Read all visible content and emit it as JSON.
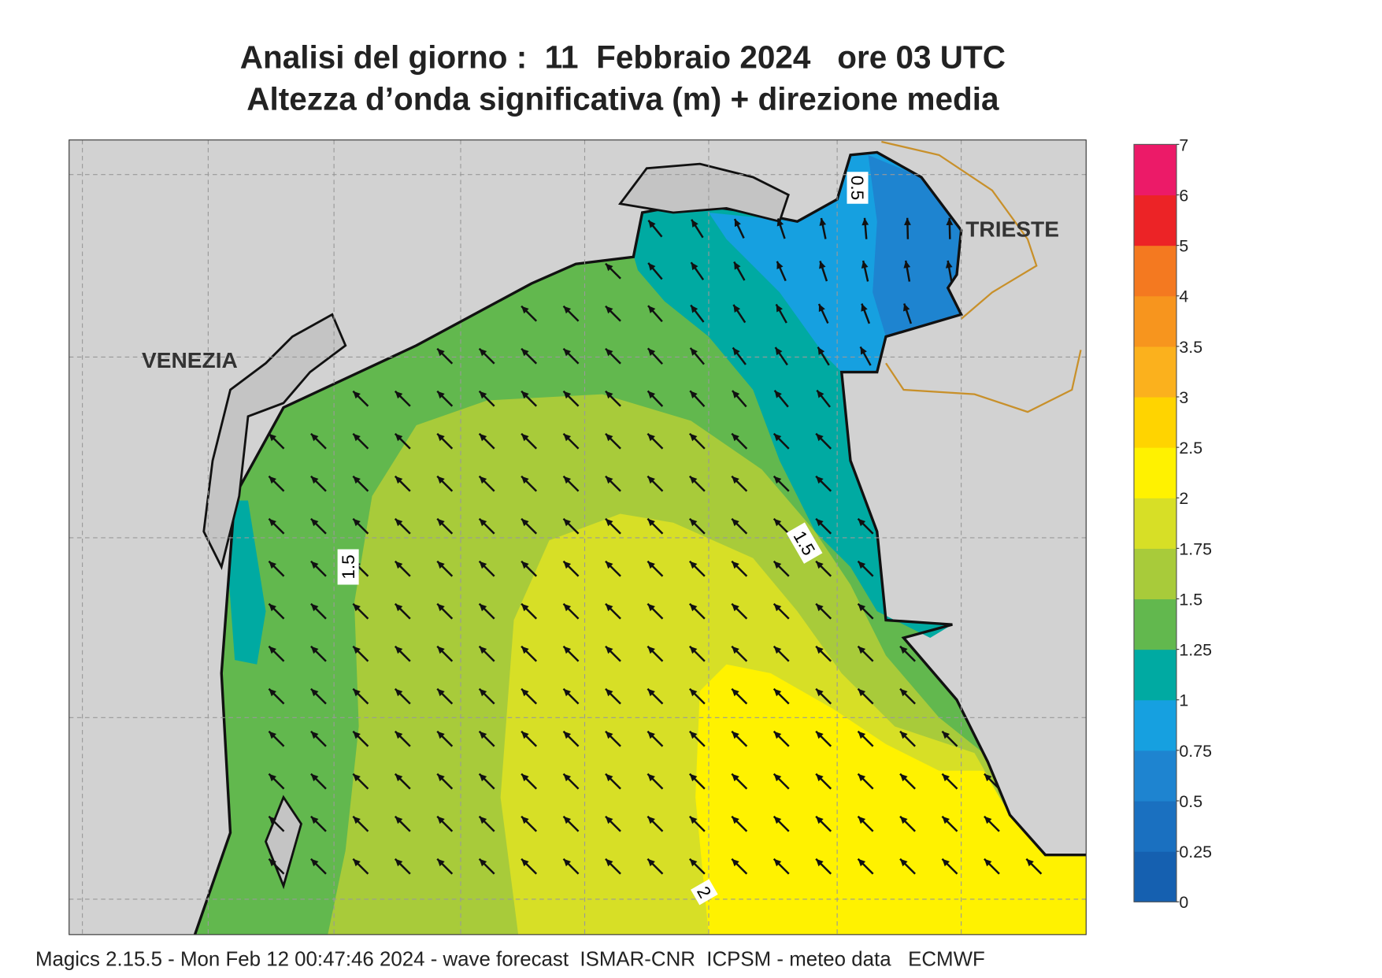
{
  "header": {
    "title": "Analisi del giorno :  11  Febbraio 2024   ore 03 UTC",
    "subtitle": "Altezza d’onda significativa (m) + direzione media"
  },
  "map": {
    "labels": [
      "VENEZIA",
      "TRIESTE"
    ],
    "contour_labels": [
      0.5,
      1.5,
      1.5,
      2
    ]
  },
  "colorbar": {
    "ticks": [
      0,
      0.25,
      0.5,
      0.75,
      1,
      1.25,
      1.5,
      1.75,
      2,
      2.5,
      3,
      3.5,
      4,
      5,
      6,
      7
    ],
    "colors": [
      "#1560b0",
      "#1a70c0",
      "#1e84d0",
      "#16a0e0",
      "#00aaa2",
      "#62b84e",
      "#a8cb3a",
      "#d7df26",
      "#fff200",
      "#ffd400",
      "#fbb11d",
      "#f7951e",
      "#f47920",
      "#ec2326",
      "#ec1a68"
    ]
  },
  "footer": "Magics 2.15.5 - Mon Feb 12 00:47:46 2024 - wave forecast  ISMAR-CNR  ICPSM - meteo data   ECMWF"
}
